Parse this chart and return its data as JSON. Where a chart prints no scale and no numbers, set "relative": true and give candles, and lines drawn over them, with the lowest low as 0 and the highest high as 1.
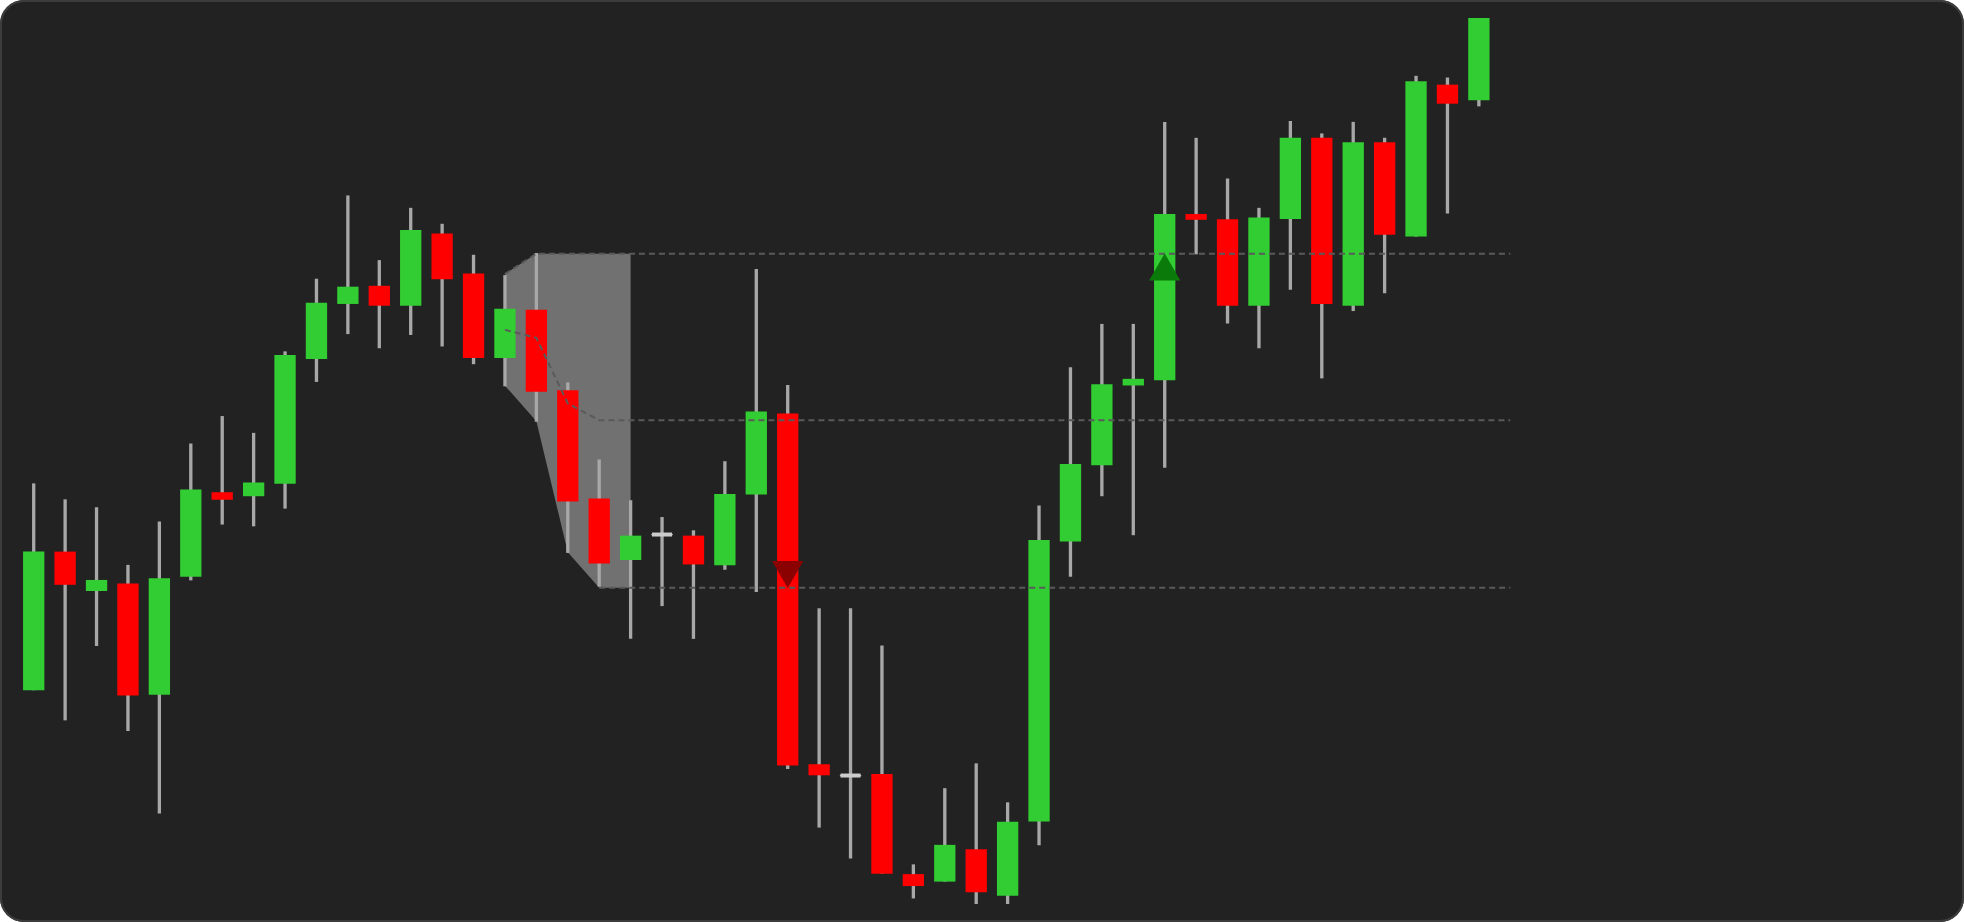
{
  "chart_data": {
    "type": "candlestick",
    "relative": true,
    "categories": [
      null,
      null,
      null,
      null,
      null,
      null,
      null,
      null,
      null,
      null,
      null,
      null,
      null,
      null,
      null,
      null,
      null,
      null,
      null,
      null,
      null,
      null,
      null,
      null,
      null,
      null,
      null,
      null,
      null,
      null,
      null,
      null,
      null,
      null,
      null,
      null,
      null,
      null,
      null,
      null,
      null,
      null,
      null,
      null,
      null,
      null,
      null,
      null
    ],
    "ohlc": [
      [
        0.242,
        0.474,
        0.242,
        0.397
      ],
      [
        0.397,
        0.456,
        0.208,
        0.361
      ],
      [
        0.354,
        0.447,
        0.292,
        0.365
      ],
      [
        0.361,
        0.382,
        0.196,
        0.236
      ],
      [
        0.237,
        0.431,
        0.103,
        0.367
      ],
      [
        0.37,
        0.519,
        0.366,
        0.467
      ],
      [
        0.464,
        0.55,
        0.429,
        0.457
      ],
      [
        0.461,
        0.531,
        0.427,
        0.475
      ],
      [
        0.475,
        0.623,
        0.447,
        0.619
      ],
      [
        0.616,
        0.705,
        0.59,
        0.678
      ],
      [
        0.678,
        0.799,
        0.644,
        0.696
      ],
      [
        0.697,
        0.726,
        0.628,
        0.676
      ],
      [
        0.676,
        0.785,
        0.643,
        0.76
      ],
      [
        0.756,
        0.767,
        0.63,
        0.706
      ],
      [
        0.711,
        0.732,
        0.61,
        0.617
      ],
      [
        0.617,
        0.709,
        0.585,
        0.671
      ],
      [
        0.67,
        0.734,
        0.545,
        0.579
      ],
      [
        0.579,
        0.588,
        0.397,
        0.455
      ],
      [
        0.457,
        0.501,
        0.359,
        0.385
      ],
      [
        0.389,
        0.455,
        0.3,
        0.415
      ],
      [
        0.417,
        0.436,
        0.337,
        0.417
      ],
      [
        0.415,
        0.421,
        0.3,
        0.384
      ],
      [
        0.383,
        0.499,
        0.378,
        0.462
      ],
      [
        0.463,
        0.716,
        0.353,
        0.555
      ],
      [
        0.553,
        0.585,
        0.153,
        0.157
      ],
      [
        0.157,
        0.333,
        0.087,
        0.146
      ],
      [
        0.145,
        0.333,
        0.052,
        0.145
      ],
      [
        0.146,
        0.291,
        0.035,
        0.035
      ],
      [
        0.033,
        0.044,
        0.007,
        0.021
      ],
      [
        0.026,
        0.13,
        0.026,
        0.066
      ],
      [
        0.061,
        0.158,
        0,
        0.014
      ],
      [
        0.01,
        0.114,
        0,
        0.092
      ],
      [
        0.094,
        0.449,
        0.067,
        0.41
      ],
      [
        0.41,
        0.605,
        0.37,
        0.496
      ],
      [
        0.496,
        0.654,
        0.461,
        0.586
      ],
      [
        0.586,
        0.654,
        0.417,
        0.592
      ],
      [
        0.592,
        0.882,
        0.493,
        0.778
      ],
      [
        0.778,
        0.864,
        0.734,
        0.773
      ],
      [
        0.772,
        0.818,
        0.656,
        0.676
      ],
      [
        0.676,
        0.785,
        0.628,
        0.774
      ],
      [
        0.774,
        0.883,
        0.694,
        0.864
      ],
      [
        0.864,
        0.869,
        0.594,
        0.678
      ],
      [
        0.676,
        0.882,
        0.67,
        0.859
      ],
      [
        0.859,
        0.864,
        0.69,
        0.756
      ],
      [
        0.754,
        0.934,
        0.754,
        0.928
      ],
      [
        0.924,
        0.932,
        0.78,
        0.904
      ],
      [
        0.908,
        1,
        0.901,
        1
      ],
      null
    ],
    "colors": [
      "#32cd32",
      "#ff0000",
      "#32cd32",
      "#ff0000",
      "#32cd32",
      "#32cd32",
      "#ff0000",
      "#32cd32",
      "#32cd32",
      "#32cd32",
      "#32cd32",
      "#ff0000",
      "#32cd32",
      "#ff0000",
      "#ff0000",
      "#32cd32",
      "#ff0000",
      "#ff0000",
      "#ff0000",
      "#32cd32",
      "#cccccc",
      "#ff0000",
      "#32cd32",
      "#32cd32",
      "#ff0000",
      "#ff0000",
      "#cccccc",
      "#ff0000",
      "#ff0000",
      "#32cd32",
      "#ff0000",
      "#32cd32",
      "#32cd32",
      "#32cd32",
      "#32cd32",
      "#32cd32",
      "#32cd32",
      "#ff0000",
      "#ff0000",
      "#32cd32",
      "#32cd32",
      "#ff0000",
      "#32cd32",
      "#ff0000",
      "#32cd32",
      "#ff0000",
      "#32cd32",
      null
    ],
    "series": [
      {
        "type": "line",
        "color": "#5a5a5a",
        "line_style": "dashed",
        "values": [
          null,
          null,
          null,
          null,
          null,
          null,
          null,
          null,
          null,
          null,
          null,
          null,
          null,
          null,
          null,
          0.711,
          0.734,
          0.734,
          0.734,
          0.734,
          0.734,
          0.734,
          0.734,
          0.734,
          0.734,
          0.734,
          0.734,
          0.734,
          0.734,
          0.734,
          0.734,
          0.734,
          0.734,
          0.734,
          0.734,
          0.734,
          0.734,
          0.734,
          0.734,
          0.734,
          0.734,
          0.734,
          0.734,
          0.734,
          0.734,
          0.734,
          0.734,
          0.734
        ]
      },
      {
        "type": "line",
        "color": "#5a5a5a",
        "line_style": "dashed",
        "values": [
          null,
          null,
          null,
          null,
          null,
          null,
          null,
          null,
          null,
          null,
          null,
          null,
          null,
          null,
          null,
          0.648,
          0.639,
          0.565,
          0.546,
          0.546,
          0.546,
          0.546,
          0.546,
          0.546,
          0.546,
          0.546,
          0.546,
          0.546,
          0.546,
          0.546,
          0.546,
          0.546,
          0.546,
          0.546,
          0.546,
          0.546,
          0.546,
          0.546,
          0.546,
          0.546,
          0.546,
          0.546,
          0.546,
          0.546,
          0.546,
          0.546,
          0.546,
          0.546
        ],
        "lower": [
          null,
          null,
          null,
          null,
          null,
          null,
          null,
          null,
          null,
          null,
          null,
          null,
          null,
          null,
          null,
          0.585,
          0.545,
          0.397,
          0.357,
          0.357,
          null,
          null,
          null,
          null,
          null,
          null,
          null,
          null,
          null,
          null,
          null,
          null,
          null,
          null,
          null,
          null,
          null,
          null,
          null,
          null,
          null,
          null,
          null,
          null,
          null,
          null,
          null,
          null
        ],
        "upper": [
          null,
          null,
          null,
          null,
          null,
          null,
          null,
          null,
          null,
          null,
          null,
          null,
          null,
          null,
          null,
          0.711,
          0.734,
          0.734,
          0.734,
          0.734,
          null,
          null,
          null,
          null,
          null,
          null,
          null,
          null,
          null,
          null,
          null,
          null,
          null,
          null,
          null,
          null,
          null,
          null,
          null,
          null,
          null,
          null,
          null,
          null,
          null,
          null,
          null,
          null
        ]
      },
      {
        "type": "line",
        "color": "#5a5a5a",
        "line_style": "dashed",
        "values": [
          null,
          null,
          null,
          null,
          null,
          null,
          null,
          null,
          null,
          null,
          null,
          null,
          null,
          null,
          null,
          null,
          null,
          null,
          0.357,
          0.357,
          0.357,
          0.357,
          0.357,
          0.357,
          0.357,
          0.357,
          0.357,
          0.357,
          0.357,
          0.357,
          0.357,
          0.357,
          0.357,
          0.357,
          0.357,
          0.357,
          0.357,
          0.357,
          0.357,
          0.357,
          0.357,
          0.357,
          0.357,
          0.357,
          0.357,
          0.357,
          0.357,
          0.357
        ]
      },
      {
        "type": "scatter",
        "marker": "triangle",
        "color": "#0a7a0a",
        "values": [
          null,
          null,
          null,
          null,
          null,
          null,
          null,
          null,
          null,
          null,
          null,
          null,
          null,
          null,
          null,
          null,
          null,
          null,
          null,
          null,
          null,
          null,
          null,
          null,
          null,
          null,
          null,
          null,
          null,
          null,
          null,
          null,
          null,
          null,
          null,
          null,
          0.714,
          null,
          null,
          null,
          null,
          null,
          null,
          null,
          null,
          null,
          null,
          null
        ]
      },
      {
        "type": "scatter",
        "marker": "triangle",
        "color": "#8b0000",
        "values": [
          null,
          null,
          null,
          null,
          null,
          null,
          null,
          null,
          null,
          null,
          null,
          null,
          null,
          null,
          null,
          null,
          null,
          null,
          null,
          null,
          null,
          null,
          null,
          null,
          0.377,
          null,
          null,
          null,
          null,
          null,
          null,
          null,
          null,
          null,
          null,
          null,
          null,
          null,
          null,
          null,
          null,
          null,
          null,
          null,
          null,
          null,
          null,
          null
        ]
      }
    ]
  }
}
